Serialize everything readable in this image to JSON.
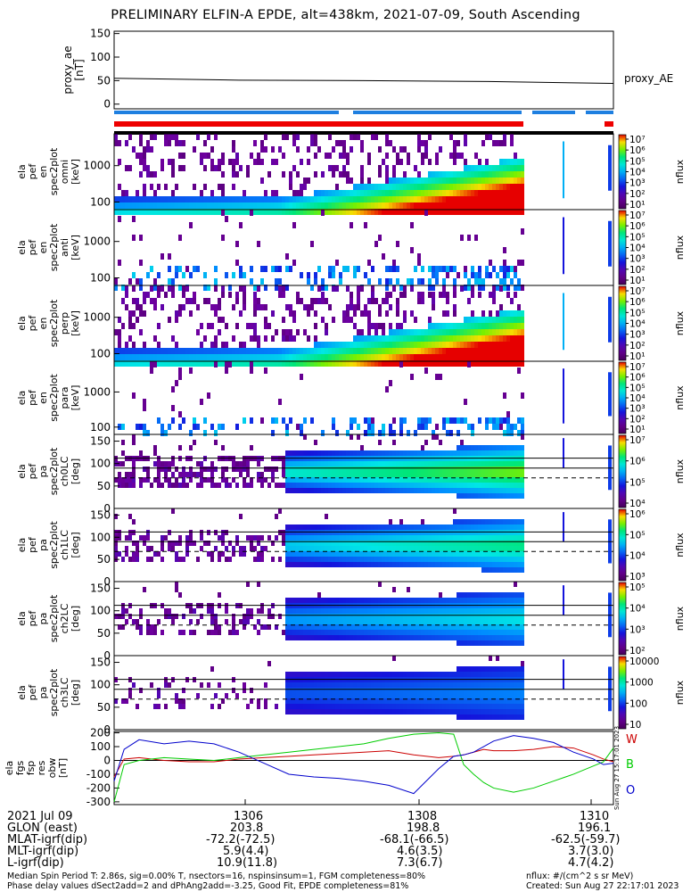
{
  "title": "PRELIMINARY ELFIN-A EPDE, alt=438km, 2021-07-09, South Ascending",
  "colors": {
    "ae_line": "#000000",
    "coverage_blue": "#1e7fe0",
    "coverage_red": "#ee0000",
    "coverage_black": "#000000",
    "mag_W": "#cc0000",
    "mag_B": "#00cc00",
    "mag_O": "#0000cc"
  },
  "chart_data": [
    {
      "type": "line",
      "panel": "proxy_ae",
      "ylabel": [
        "proxy_ae",
        "[nT]"
      ],
      "yticks": [
        "150",
        "100",
        "50",
        "0"
      ],
      "ylim": [
        -10,
        155
      ],
      "legend": "proxy_AE",
      "x": [
        0,
        0.25,
        0.5,
        0.75,
        1.0
      ],
      "values": [
        55,
        51,
        50,
        48,
        44
      ]
    },
    {
      "type": "heatmap",
      "panel": "ela_pef_en_spec2plot_omni",
      "ylabel": [
        "ela",
        "pef",
        "en",
        "spec2plot",
        "omni",
        "[keV]"
      ],
      "yticks": [
        "1000",
        "100"
      ],
      "zlabel": "nflux",
      "zticks": [
        "10⁷",
        "10⁶",
        "10⁵",
        "10⁴",
        "10³",
        "10²",
        "10¹"
      ]
    },
    {
      "type": "heatmap",
      "panel": "ela_pef_en_spec2plot_anti",
      "ylabel": [
        "ela",
        "pef",
        "en",
        "spec2plot",
        "anti",
        "[keV]"
      ],
      "yticks": [
        "1000",
        "100"
      ],
      "zlabel": "nflux",
      "zticks": [
        "10⁷",
        "10⁶",
        "10⁵",
        "10⁴",
        "10³",
        "10²",
        "10¹"
      ]
    },
    {
      "type": "heatmap",
      "panel": "ela_pef_en_spec2plot_perp",
      "ylabel": [
        "ela",
        "pef",
        "en",
        "spec2plot",
        "perp",
        "[keV]"
      ],
      "yticks": [
        "1000",
        "100"
      ],
      "zlabel": "nflux",
      "zticks": [
        "10⁷",
        "10⁶",
        "10⁵",
        "10⁴",
        "10³",
        "10²",
        "10¹"
      ]
    },
    {
      "type": "heatmap",
      "panel": "ela_pef_en_spec2plot_para",
      "ylabel": [
        "ela",
        "pef",
        "en",
        "spec2plot",
        "para",
        "[keV]"
      ],
      "yticks": [
        "1000",
        "100"
      ],
      "zlabel": "nflux",
      "zticks": [
        "10⁷",
        "10⁶",
        "10⁵",
        "10⁴",
        "10³",
        "10²",
        "10¹"
      ]
    },
    {
      "type": "heatmap",
      "panel": "ela_pef_pa_spec2plot_ch0LC",
      "ylabel": [
        "ela",
        "pef",
        "pa",
        "spec2plot",
        "ch0LC",
        "[deg]"
      ],
      "yticks": [
        "150",
        "100",
        "50",
        "0"
      ],
      "zlabel": "nflux",
      "zticks": [
        "10⁷",
        "10⁶",
        "10⁵",
        "10⁴"
      ]
    },
    {
      "type": "heatmap",
      "panel": "ela_pef_pa_spec2plot_ch1LC",
      "ylabel": [
        "ela",
        "pef",
        "pa",
        "spec2plot",
        "ch1LC",
        "[deg]"
      ],
      "yticks": [
        "150",
        "100",
        "50",
        "0"
      ],
      "zlabel": "nflux",
      "zticks": [
        "10⁶",
        "10⁵",
        "10⁴",
        "10³"
      ]
    },
    {
      "type": "heatmap",
      "panel": "ela_pef_pa_spec2plot_ch2LC",
      "ylabel": [
        "ela",
        "pef",
        "pa",
        "spec2plot",
        "ch2LC",
        "[deg]"
      ],
      "yticks": [
        "150",
        "100",
        "50",
        "0"
      ],
      "zlabel": "nflux",
      "zticks": [
        "10⁵",
        "10⁴",
        "10³",
        "10²"
      ]
    },
    {
      "type": "heatmap",
      "panel": "ela_pef_pa_spec2plot_ch3LC",
      "ylabel": [
        "ela",
        "pef",
        "pa",
        "spec2plot",
        "ch3LC",
        "[deg]"
      ],
      "yticks": [
        "150",
        "100",
        "50",
        "0"
      ],
      "zlabel": "nflux",
      "zticks": [
        "10000",
        "1000",
        "100",
        "10"
      ]
    },
    {
      "type": "line",
      "panel": "ela_fgs_fsp_res_obw",
      "ylabel": [
        "ela",
        "fgs",
        "fsp",
        "res",
        "obw",
        "[nT]"
      ],
      "yticks": [
        "200",
        "100",
        "0",
        "-100",
        "-200",
        "-300"
      ],
      "ylim": [
        -320,
        210
      ],
      "x": [
        0,
        0.02,
        0.05,
        0.1,
        0.15,
        0.2,
        0.25,
        0.3,
        0.35,
        0.4,
        0.45,
        0.5,
        0.55,
        0.6,
        0.65,
        0.68,
        0.7,
        0.72,
        0.74,
        0.76,
        0.8,
        0.84,
        0.88,
        0.92,
        0.96,
        0.98,
        1.0
      ],
      "series": [
        {
          "name": "W",
          "values": [
            -120,
            10,
            20,
            0,
            -10,
            -10,
            10,
            20,
            30,
            40,
            50,
            60,
            70,
            40,
            20,
            30,
            40,
            60,
            80,
            70,
            70,
            80,
            100,
            90,
            40,
            10,
            -10
          ]
        },
        {
          "name": "B",
          "values": [
            -300,
            -30,
            0,
            20,
            10,
            0,
            20,
            40,
            60,
            80,
            100,
            120,
            160,
            190,
            200,
            190,
            -30,
            -100,
            -160,
            -200,
            -230,
            -200,
            -150,
            -100,
            -40,
            -10,
            90
          ]
        },
        {
          "name": "O",
          "values": [
            -150,
            80,
            150,
            120,
            140,
            120,
            60,
            -20,
            -100,
            -120,
            -130,
            -150,
            -180,
            -240,
            -60,
            30,
            40,
            60,
            100,
            140,
            180,
            160,
            130,
            60,
            10,
            -30,
            -20
          ]
        }
      ],
      "legend": [
        "W",
        "B",
        "O"
      ],
      "side_stamp": "Sun Aug 27 15:17:01 2023"
    }
  ],
  "footer": {
    "columns": [
      "2021 Jul 09",
      "1306",
      "1308",
      "1310"
    ],
    "rows": [
      {
        "label": "GLON (east)",
        "values": [
          "203.8",
          "198.8",
          "196.1"
        ]
      },
      {
        "label": "MLAT-igrf(dip)",
        "values": [
          "-72.2(-72.5)",
          "-68.1(-66.5)",
          "-62.5(-59.7)"
        ]
      },
      {
        "label": "MLT-igrf(dip)",
        "values": [
          "5.9(4.4)",
          "4.6(3.5)",
          "3.7(3.0)"
        ]
      },
      {
        "label": "L-igrf(dip)",
        "values": [
          "10.9(11.8)",
          "7.3(6.7)",
          "4.7(4.2)"
        ]
      }
    ],
    "note_left_1": "Median Spin Period T: 2.86s, sig=0.00% T, nsectors=16, nspinsinsum=1, FGM completeness=80%",
    "note_left_2": "Phase delay values dSect2add=2 and dPhAng2add=-3.25, Good Fit, EPDE completeness=81%",
    "note_right_1": "nflux: #/(cm^2 s sr MeV)",
    "note_right_2": "Created: Sun Aug 27 22:17:01 2023"
  }
}
